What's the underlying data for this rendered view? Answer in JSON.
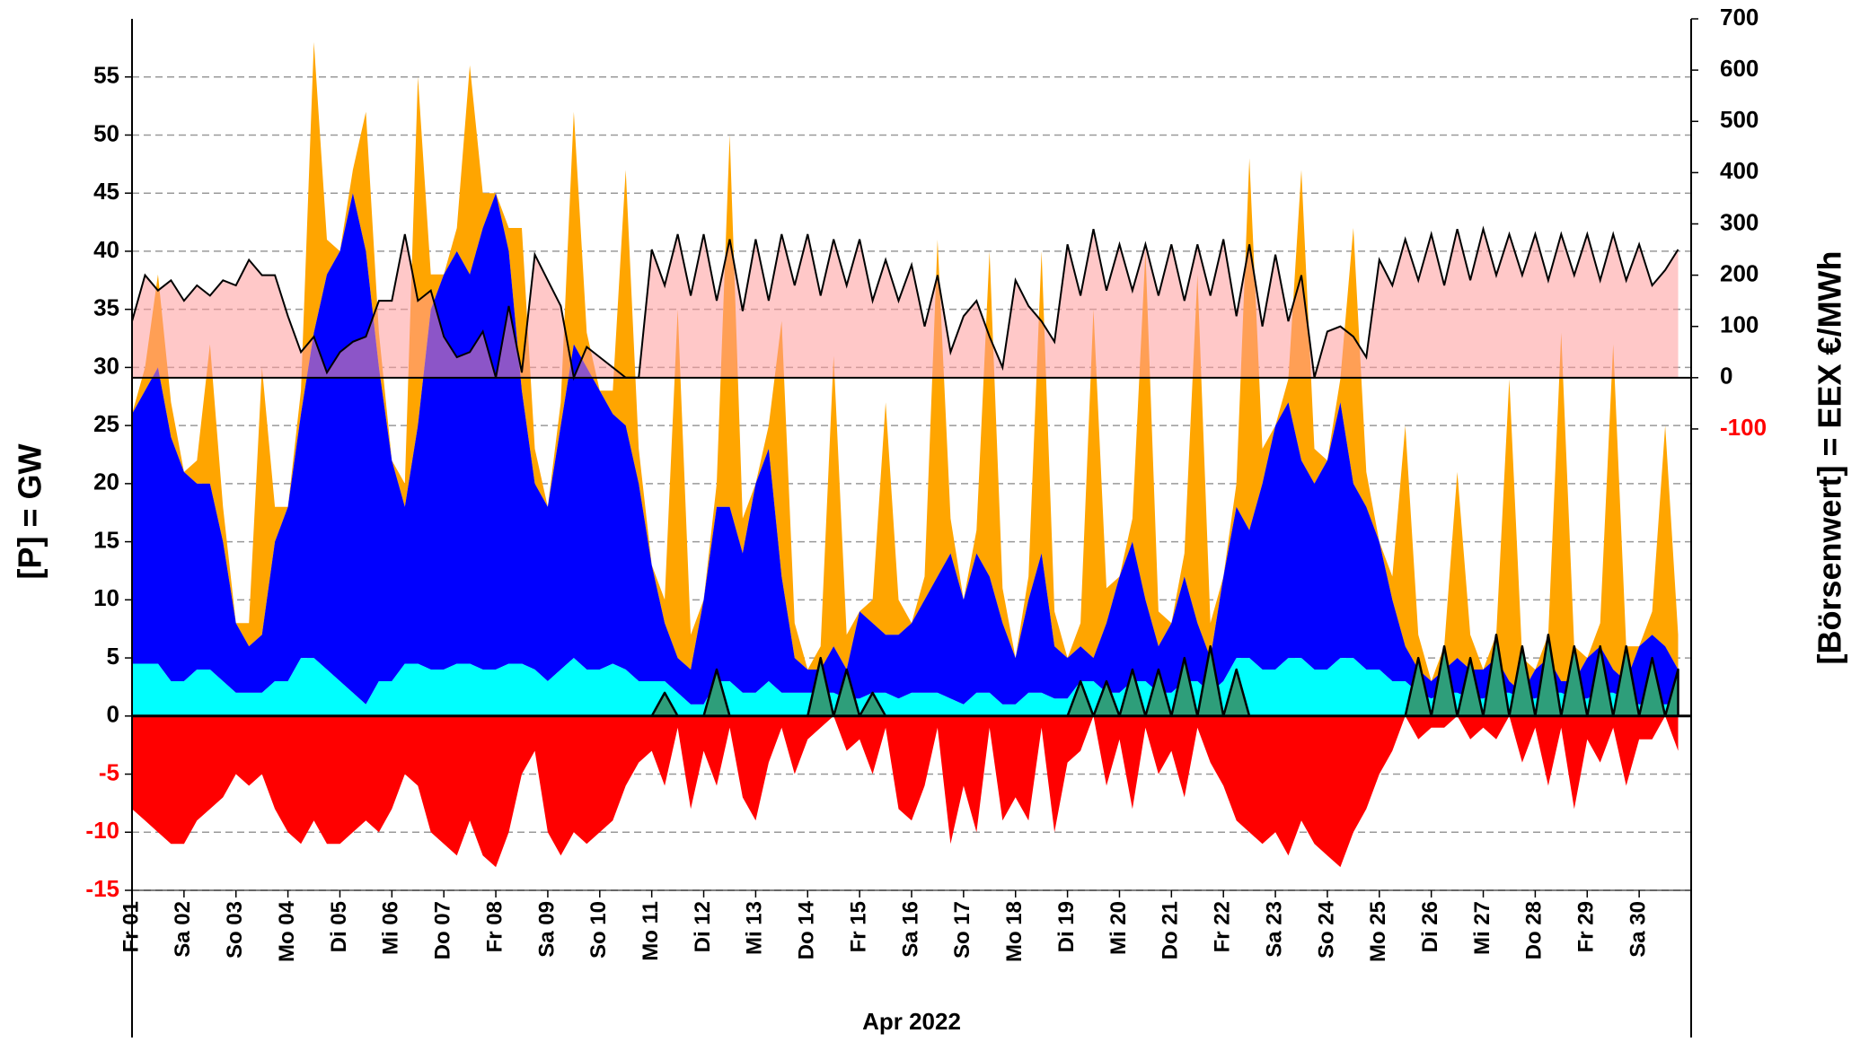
{
  "chart_data": {
    "type": "area",
    "ylabel": "[P] = GW",
    "y2label": "[Börsenwert] = EEX  €/MWh",
    "xlabel": "Apr 2022",
    "categories": [
      "Fr 01",
      null,
      null,
      null,
      "Sa 02",
      null,
      null,
      null,
      "So 03",
      null,
      null,
      null,
      "Mo 04",
      null,
      null,
      null,
      "Di 05",
      null,
      null,
      null,
      "Mi 06",
      null,
      null,
      null,
      "Do 07",
      null,
      null,
      null,
      "Fr 08",
      null,
      null,
      null,
      "Sa 09",
      null,
      null,
      null,
      "So 10",
      null,
      null,
      null,
      "Mo 11",
      null,
      null,
      null,
      "Di 12",
      null,
      null,
      null,
      "Mi 13",
      null,
      null,
      null,
      "Do 14",
      null,
      null,
      null,
      "Fr 15",
      null,
      null,
      null,
      "Sa 16",
      null,
      null,
      null,
      "So 17",
      null,
      null,
      null,
      "Mo 18",
      null,
      null,
      null,
      "Di 19",
      null,
      null,
      null,
      "Mi 20",
      null,
      null,
      null,
      "Do 21",
      null,
      null,
      null,
      "Fr 22",
      null,
      null,
      null,
      "Sa 23",
      null,
      null,
      null,
      "So 24",
      null,
      null,
      null,
      "Mo 25",
      null,
      null,
      null,
      "Di 26",
      null,
      null,
      null,
      "Mi 27",
      null,
      null,
      null,
      "Do 28",
      null,
      null,
      null,
      "Fr 29",
      null,
      null,
      null,
      "Sa 30",
      null,
      null,
      null
    ],
    "ylim": [
      -15,
      60
    ],
    "yticks": [
      -15,
      -10,
      -5,
      0,
      5,
      10,
      15,
      20,
      25,
      30,
      35,
      40,
      45,
      50,
      55
    ],
    "y2lim": [
      -1000,
      700
    ],
    "y2ticks": [
      -100,
      0,
      100,
      200,
      300,
      400,
      500,
      600,
      700
    ],
    "grid": true,
    "series": [
      {
        "color": "#00ffff",
        "stacked": true,
        "values": [
          4.5,
          4.5,
          4.5,
          3,
          3,
          4,
          4,
          3,
          2,
          2,
          2,
          3,
          3,
          5,
          5,
          4,
          3,
          2,
          1,
          3,
          3,
          4.5,
          4.5,
          4,
          4,
          4.5,
          4.5,
          4,
          4,
          4.5,
          4.5,
          4,
          3,
          4,
          5,
          4,
          4,
          4.5,
          4,
          3,
          3,
          3,
          2,
          1,
          1,
          3,
          3,
          2,
          2,
          3,
          2,
          2,
          2,
          2,
          2,
          1.5,
          1.5,
          2,
          2,
          1.5,
          2,
          2,
          2,
          1.5,
          1,
          2,
          2,
          1,
          1,
          2,
          2,
          1.5,
          1.5,
          3,
          3,
          2,
          2,
          3,
          3,
          2,
          2,
          3,
          3,
          2,
          3,
          5,
          5,
          4,
          4,
          5,
          5,
          4,
          4,
          5,
          5,
          4,
          4,
          3,
          3,
          2,
          1.5,
          2,
          2,
          1.5,
          1.5,
          2,
          2,
          1.5,
          1.5,
          2,
          2,
          1.5,
          1.5,
          2,
          2,
          1.5,
          1,
          1,
          1,
          1
        ]
      },
      {
        "color": "#0000ff",
        "stacked": true,
        "values": [
          21.5,
          23.5,
          25.5,
          21,
          18,
          16,
          16,
          12,
          6,
          4,
          5,
          12,
          15,
          21,
          28,
          34,
          37,
          43,
          39,
          27,
          19,
          13.5,
          20.5,
          31,
          34,
          35.5,
          33.5,
          38,
          41,
          35.5,
          23.5,
          16,
          15,
          21,
          27,
          26,
          24,
          21.5,
          21,
          17,
          10,
          5,
          3,
          3,
          9,
          15,
          15,
          12,
          18,
          20,
          10,
          3,
          2,
          2,
          4,
          2.5,
          7.5,
          6,
          5,
          5.5,
          6,
          8,
          10,
          12.5,
          9,
          12,
          10,
          7,
          4,
          8,
          12,
          4.5,
          3.5,
          3,
          2,
          6,
          10,
          12,
          7,
          4,
          6,
          9,
          5,
          3,
          9,
          13,
          11,
          16,
          21,
          22,
          17,
          16,
          18,
          22,
          15,
          14,
          11,
          7,
          3,
          2,
          1.5,
          2,
          3,
          2.5,
          2.5,
          3,
          1,
          0.5,
          2.5,
          3,
          1,
          1.5,
          3.5,
          4,
          2,
          1.5,
          5,
          6,
          5,
          3
        ]
      },
      {
        "color": "#ffa500",
        "stacked": true,
        "values": [
          0,
          2,
          8,
          3,
          0,
          2,
          12,
          3,
          0,
          2,
          23,
          3,
          0,
          2,
          25,
          3,
          0,
          2,
          12,
          3,
          0,
          2,
          30,
          3,
          0,
          2,
          18,
          3,
          0,
          2,
          14,
          3,
          0,
          2,
          20,
          3,
          0,
          2,
          22,
          3,
          0,
          2,
          30,
          3,
          0,
          2,
          32,
          3,
          0,
          2,
          22,
          3,
          0,
          2,
          25,
          3,
          0,
          2,
          20,
          3,
          0,
          2,
          29,
          3,
          0,
          2,
          28,
          3,
          0,
          2,
          26,
          3,
          0,
          2,
          30,
          3,
          0,
          2,
          30,
          3,
          0,
          2,
          30,
          3,
          0,
          2,
          32,
          3,
          0,
          2,
          25,
          3,
          0,
          2,
          22,
          3,
          0,
          2,
          19,
          3,
          0,
          2,
          16,
          3,
          0,
          2,
          26,
          3,
          0,
          2,
          30,
          3,
          0,
          2,
          28,
          3,
          0,
          2,
          19,
          3
        ]
      },
      {
        "color": "#ff0000",
        "values": [
          -8,
          -9,
          -10,
          -11,
          -11,
          -9,
          -8,
          -7,
          -5,
          -6,
          -5,
          -8,
          -10,
          -11,
          -9,
          -11,
          -11,
          -10,
          -9,
          -10,
          -8,
          -5,
          -6,
          -10,
          -11,
          -12,
          -9,
          -12,
          -13,
          -10,
          -5,
          -3,
          -10,
          -12,
          -10,
          -11,
          -10,
          -9,
          -6,
          -4,
          -3,
          -6,
          -1,
          -8,
          -3,
          -6,
          -1,
          -7,
          -9,
          -4,
          -1,
          -5,
          -2,
          -1,
          0,
          -3,
          -2,
          -5,
          -1,
          -8,
          -9,
          -6,
          -1,
          -11,
          -6,
          -10,
          -1,
          -9,
          -7,
          -9,
          -1,
          -10,
          -4,
          -3,
          0,
          -6,
          -2,
          -8,
          -1,
          -5,
          -3,
          -7,
          -1,
          -4,
          -6,
          -9,
          -10,
          -11,
          -10,
          -12,
          -9,
          -11,
          -12,
          -13,
          -10,
          -8,
          -5,
          -3,
          0,
          -2,
          -1,
          -1,
          0,
          -2,
          -1,
          -2,
          0,
          -4,
          -1,
          -6,
          -1,
          -8,
          -2,
          -4,
          -1,
          -6,
          -2,
          -2,
          0,
          -3
        ]
      },
      {
        "color": "#2e9e7a",
        "outline": "#000000",
        "values": [
          0,
          0,
          0,
          0,
          0,
          0,
          0,
          0,
          0,
          0,
          0,
          0,
          0,
          0,
          0,
          0,
          0,
          0,
          0,
          0,
          0,
          0,
          0,
          0,
          0,
          0,
          0,
          0,
          0,
          0,
          0,
          0,
          0,
          0,
          0,
          0,
          0,
          0,
          0,
          0,
          0,
          2,
          0,
          0,
          0,
          4,
          0,
          0,
          0,
          0,
          0,
          0,
          0,
          5,
          0,
          4,
          0,
          2,
          0,
          0,
          0,
          0,
          0,
          0,
          0,
          0,
          0,
          0,
          0,
          0,
          0,
          0,
          0,
          3,
          0,
          3,
          0,
          4,
          0,
          4,
          0,
          5,
          0,
          6,
          0,
          4,
          0,
          0,
          0,
          0,
          0,
          0,
          0,
          0,
          0,
          0,
          0,
          0,
          0,
          5,
          0,
          6,
          0,
          5,
          0,
          7,
          0,
          6,
          0,
          7,
          0,
          6,
          0,
          6,
          0,
          6,
          0,
          5,
          0,
          4
        ]
      },
      {
        "color": "#000000",
        "fill": "#ff9a9a",
        "axis": "y2",
        "values": [
          110,
          200,
          170,
          190,
          150,
          180,
          160,
          190,
          180,
          230,
          200,
          200,
          120,
          50,
          80,
          10,
          50,
          70,
          80,
          150,
          150,
          280,
          150,
          170,
          80,
          40,
          50,
          90,
          0,
          140,
          10,
          240,
          190,
          140,
          0,
          60,
          40,
          20,
          0,
          0,
          250,
          180,
          280,
          160,
          280,
          150,
          270,
          130,
          270,
          150,
          280,
          180,
          280,
          160,
          270,
          180,
          270,
          150,
          230,
          150,
          220,
          100,
          200,
          50,
          120,
          150,
          80,
          20,
          190,
          140,
          110,
          70,
          260,
          160,
          290,
          170,
          260,
          170,
          260,
          160,
          260,
          150,
          260,
          160,
          270,
          120,
          260,
          100,
          240,
          110,
          200,
          0,
          90,
          100,
          80,
          40,
          230,
          180,
          270,
          190,
          280,
          180,
          290,
          190,
          290,
          200,
          280,
          200,
          280,
          190,
          280,
          200,
          280,
          190,
          280,
          190,
          260,
          180,
          210,
          250
        ]
      }
    ]
  }
}
